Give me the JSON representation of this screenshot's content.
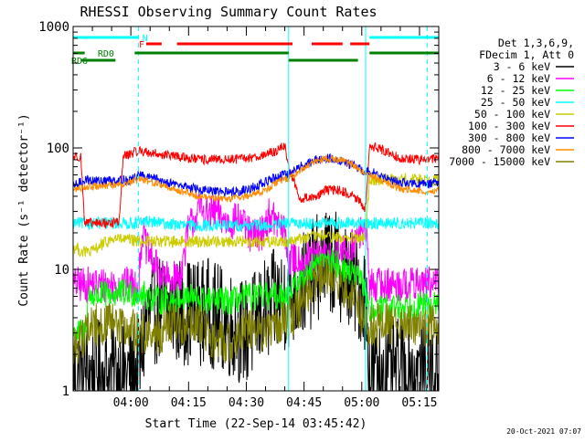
{
  "chart_data": {
    "type": "line",
    "title": "RHESSI Observing Summary Count Rates",
    "xlabel": "Start Time (22-Sep-14 03:45:42)",
    "ylabel": "Count Rate (s⁻¹ detector⁻¹)",
    "yscale": "log",
    "ylim": [
      1,
      1000
    ],
    "xlim_minutes": [
      -15,
      80
    ],
    "x_tick_labels": [
      "04:00",
      "04:15",
      "04:30",
      "04:45",
      "05:00",
      "05:15"
    ],
    "x_tick_minutes": [
      0,
      15,
      30,
      45,
      60,
      75
    ],
    "y_tick_labels": [
      "1",
      "10",
      "100",
      "1000"
    ],
    "y_tick_values": [
      1,
      10,
      100,
      1000
    ],
    "grid": false,
    "legend_position": "right",
    "legend_header": [
      "Det 1,3,6,9,",
      "FDecim 1, Att 0"
    ],
    "footer": "20-Oct-2021 07:07",
    "flags": [
      {
        "label": "N",
        "color": "#00ffff",
        "segments": [
          [
            -15,
            2
          ],
          [
            62,
            80
          ]
        ]
      },
      {
        "label": "F",
        "color": "#ff0000",
        "segments": [
          [
            4,
            8
          ],
          [
            12,
            42
          ],
          [
            47,
            55
          ],
          [
            57,
            62
          ]
        ]
      },
      {
        "label": "RD0",
        "color": "#008000",
        "segments": [
          [
            -15,
            -12
          ],
          [
            1,
            41
          ],
          [
            62,
            80
          ]
        ]
      },
      {
        "label": "RD6",
        "color": "#008000",
        "segments": [
          [
            -13,
            -4
          ],
          [
            41,
            59
          ]
        ]
      }
    ],
    "event_lines": [
      {
        "x": 2,
        "style": "dashed",
        "color": "#00ffff"
      },
      {
        "x": 41,
        "style": "solid",
        "color": "#00ffff"
      },
      {
        "x": 61,
        "style": "solid",
        "color": "#00ffff"
      },
      {
        "x": 77,
        "style": "dashed",
        "color": "#00ffff"
      }
    ],
    "night_intervals": [
      [
        -14,
        2
      ],
      [
        41,
        61
      ]
    ],
    "series": [
      {
        "name": "3 - 6 keV",
        "color": "#000000",
        "noise": 0.45,
        "points": [
          [
            -15,
            1.4
          ],
          [
            -14,
            1.4
          ],
          [
            2,
            1.4
          ],
          [
            4,
            4
          ],
          [
            8,
            5
          ],
          [
            12,
            4.5
          ],
          [
            20,
            4.5
          ],
          [
            26,
            3.5
          ],
          [
            30,
            3
          ],
          [
            35,
            4.5
          ],
          [
            38,
            5.5
          ],
          [
            41,
            6
          ],
          [
            44,
            7
          ],
          [
            48,
            10
          ],
          [
            51,
            12
          ],
          [
            55,
            10
          ],
          [
            59,
            7
          ],
          [
            61,
            6
          ],
          [
            62,
            1.4
          ],
          [
            77,
            1.4
          ],
          [
            80,
            1.4
          ]
        ]
      },
      {
        "name": "6 - 12 keV",
        "color": "#ff00ff",
        "noise": 0.15,
        "points": [
          [
            -15,
            7.5
          ],
          [
            2,
            7.5
          ],
          [
            3,
            22
          ],
          [
            4,
            15
          ],
          [
            6,
            11
          ],
          [
            8,
            9
          ],
          [
            10,
            8
          ],
          [
            13,
            9
          ],
          [
            15,
            22
          ],
          [
            18,
            32
          ],
          [
            20,
            28
          ],
          [
            22,
            30
          ],
          [
            25,
            24
          ],
          [
            28,
            26
          ],
          [
            31,
            19
          ],
          [
            34,
            20
          ],
          [
            36,
            28
          ],
          [
            38,
            24
          ],
          [
            40,
            20
          ],
          [
            41,
            12
          ],
          [
            45,
            12
          ],
          [
            51,
            13
          ],
          [
            56,
            14
          ],
          [
            60,
            20
          ],
          [
            61,
            22
          ],
          [
            62,
            7.5
          ],
          [
            80,
            7.5
          ]
        ]
      },
      {
        "name": "12 - 25 keV",
        "color": "#00ff00",
        "noise": 0.12,
        "points": [
          [
            -15,
            3
          ],
          [
            -12,
            3
          ],
          [
            -11,
            6
          ],
          [
            2,
            6.5
          ],
          [
            4,
            6
          ],
          [
            8,
            5.5
          ],
          [
            14,
            6
          ],
          [
            20,
            5.5
          ],
          [
            26,
            5.5
          ],
          [
            32,
            6
          ],
          [
            38,
            6
          ],
          [
            41,
            6.5
          ],
          [
            44,
            8
          ],
          [
            48,
            11
          ],
          [
            51,
            12
          ],
          [
            54,
            11
          ],
          [
            58,
            9
          ],
          [
            61,
            7
          ],
          [
            62,
            4.5
          ],
          [
            70,
            5
          ],
          [
            77,
            5
          ],
          [
            80,
            5
          ]
        ]
      },
      {
        "name": "25 - 50 keV",
        "color": "#00ffff",
        "noise": 0.05,
        "points": [
          [
            -15,
            24
          ],
          [
            -13,
            24
          ],
          [
            2,
            24
          ],
          [
            4,
            25
          ],
          [
            8,
            24
          ],
          [
            14,
            23
          ],
          [
            20,
            23
          ],
          [
            26,
            23
          ],
          [
            32,
            23
          ],
          [
            38,
            23
          ],
          [
            40,
            24
          ],
          [
            41,
            24
          ],
          [
            45,
            24
          ],
          [
            51,
            24
          ],
          [
            56,
            24
          ],
          [
            61,
            24
          ],
          [
            62,
            24
          ],
          [
            70,
            24
          ],
          [
            80,
            24
          ]
        ]
      },
      {
        "name": "50 - 100 keV",
        "color": "#cccc00",
        "noise": 0.05,
        "points": [
          [
            -15,
            15
          ],
          [
            -14,
            15
          ],
          [
            -13,
            14
          ],
          [
            -10,
            14
          ],
          [
            -9,
            15
          ],
          [
            -6,
            17
          ],
          [
            -4,
            18
          ],
          [
            2,
            17
          ],
          [
            41,
            17
          ],
          [
            44,
            18
          ],
          [
            50,
            19
          ],
          [
            55,
            18
          ],
          [
            58,
            18
          ],
          [
            61,
            18
          ],
          [
            62,
            55
          ],
          [
            70,
            55
          ],
          [
            80,
            55
          ]
        ]
      },
      {
        "name": "100 - 300 keV",
        "color": "#ff0000",
        "noise": 0.04,
        "points": [
          [
            -15,
            85
          ],
          [
            -13,
            85
          ],
          [
            -12,
            24
          ],
          [
            -6,
            24
          ],
          [
            -5,
            24
          ],
          [
            -3,
            25
          ],
          [
            -2,
            85
          ],
          [
            2,
            95
          ],
          [
            6,
            90
          ],
          [
            12,
            85
          ],
          [
            18,
            80
          ],
          [
            24,
            80
          ],
          [
            30,
            82
          ],
          [
            35,
            88
          ],
          [
            38,
            95
          ],
          [
            40,
            105
          ],
          [
            41,
            70
          ],
          [
            44,
            38
          ],
          [
            48,
            40
          ],
          [
            51,
            45
          ],
          [
            54,
            45
          ],
          [
            58,
            40
          ],
          [
            61,
            32
          ],
          [
            62,
            105
          ],
          [
            66,
            95
          ],
          [
            70,
            82
          ],
          [
            76,
            80
          ],
          [
            80,
            83
          ]
        ]
      },
      {
        "name": "300 - 800 keV",
        "color": "#0000ff",
        "noise": 0.04,
        "points": [
          [
            -15,
            48
          ],
          [
            -12,
            55
          ],
          [
            -8,
            53
          ],
          [
            -4,
            55
          ],
          [
            0,
            54
          ],
          [
            2,
            60
          ],
          [
            6,
            56
          ],
          [
            12,
            50
          ],
          [
            18,
            45
          ],
          [
            24,
            43
          ],
          [
            30,
            45
          ],
          [
            35,
            52
          ],
          [
            38,
            58
          ],
          [
            40,
            60
          ],
          [
            41,
            60
          ],
          [
            44,
            70
          ],
          [
            48,
            80
          ],
          [
            51,
            82
          ],
          [
            54,
            80
          ],
          [
            58,
            72
          ],
          [
            61,
            62
          ],
          [
            62,
            65
          ],
          [
            66,
            56
          ],
          [
            70,
            52
          ],
          [
            76,
            50
          ],
          [
            80,
            52
          ]
        ]
      },
      {
        "name": "800 - 7000 keV",
        "color": "#ff8c00",
        "noise": 0.03,
        "points": [
          [
            -15,
            45
          ],
          [
            -12,
            48
          ],
          [
            -8,
            48
          ],
          [
            -4,
            50
          ],
          [
            0,
            52
          ],
          [
            2,
            55
          ],
          [
            6,
            52
          ],
          [
            12,
            45
          ],
          [
            18,
            40
          ],
          [
            24,
            38
          ],
          [
            30,
            40
          ],
          [
            35,
            45
          ],
          [
            38,
            52
          ],
          [
            40,
            56
          ],
          [
            41,
            56
          ],
          [
            44,
            66
          ],
          [
            48,
            78
          ],
          [
            51,
            82
          ],
          [
            54,
            80
          ],
          [
            58,
            72
          ],
          [
            61,
            62
          ],
          [
            62,
            60
          ],
          [
            66,
            52
          ],
          [
            70,
            46
          ],
          [
            76,
            44
          ],
          [
            80,
            45
          ]
        ]
      },
      {
        "name": "7000 - 15000 keV",
        "color": "#808000",
        "noise": 0.18,
        "points": [
          [
            -15,
            2.2
          ],
          [
            -12,
            3
          ],
          [
            -10,
            3.5
          ],
          [
            -5,
            3.5
          ],
          [
            0,
            3.2
          ],
          [
            2,
            3
          ],
          [
            6,
            2.8
          ],
          [
            10,
            3.5
          ],
          [
            14,
            3.5
          ],
          [
            18,
            3.5
          ],
          [
            22,
            2.5
          ],
          [
            26,
            2.5
          ],
          [
            30,
            3.5
          ],
          [
            34,
            3
          ],
          [
            38,
            3.5
          ],
          [
            41,
            4
          ],
          [
            44,
            5
          ],
          [
            48,
            8
          ],
          [
            51,
            9.5
          ],
          [
            54,
            8
          ],
          [
            58,
            5.5
          ],
          [
            61,
            4
          ],
          [
            62,
            3.5
          ],
          [
            70,
            3.5
          ],
          [
            80,
            3.5
          ]
        ]
      }
    ]
  }
}
